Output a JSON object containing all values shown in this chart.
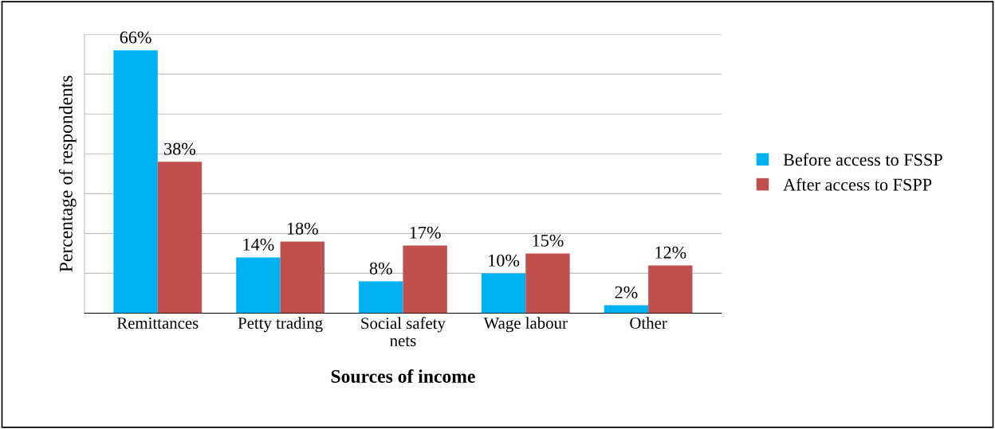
{
  "chart_data": {
    "type": "bar",
    "xlabel": "Sources of income",
    "ylabel": "Percentage of respondents",
    "categories": [
      "Remittances",
      "Petty trading",
      "Social safety\nnets",
      "Wage labour",
      "Other"
    ],
    "series": [
      {
        "name": "Before access to FSSP",
        "color": "#00b0f0",
        "values": [
          66,
          14,
          8,
          10,
          2
        ],
        "value_labels": [
          "66%",
          "14%",
          "8%",
          "10%",
          "2%"
        ]
      },
      {
        "name": "After access to FSPP",
        "color": "#c0504d",
        "values": [
          38,
          18,
          17,
          15,
          12
        ],
        "value_labels": [
          "38%",
          "18%",
          "17%",
          "15%",
          "12%"
        ]
      }
    ],
    "ylim": [
      0,
      70
    ],
    "yticks": [
      {
        "value": 0,
        "label": null
      },
      {
        "value": 10,
        "label": null
      },
      {
        "value": 20,
        "label": null
      },
      {
        "value": 30,
        "label": null
      },
      {
        "value": 40,
        "label": null
      },
      {
        "value": 50,
        "label": null
      },
      {
        "value": 60,
        "label": null
      },
      {
        "value": 70,
        "label": null
      }
    ],
    "grid": "y",
    "legend": "right"
  }
}
